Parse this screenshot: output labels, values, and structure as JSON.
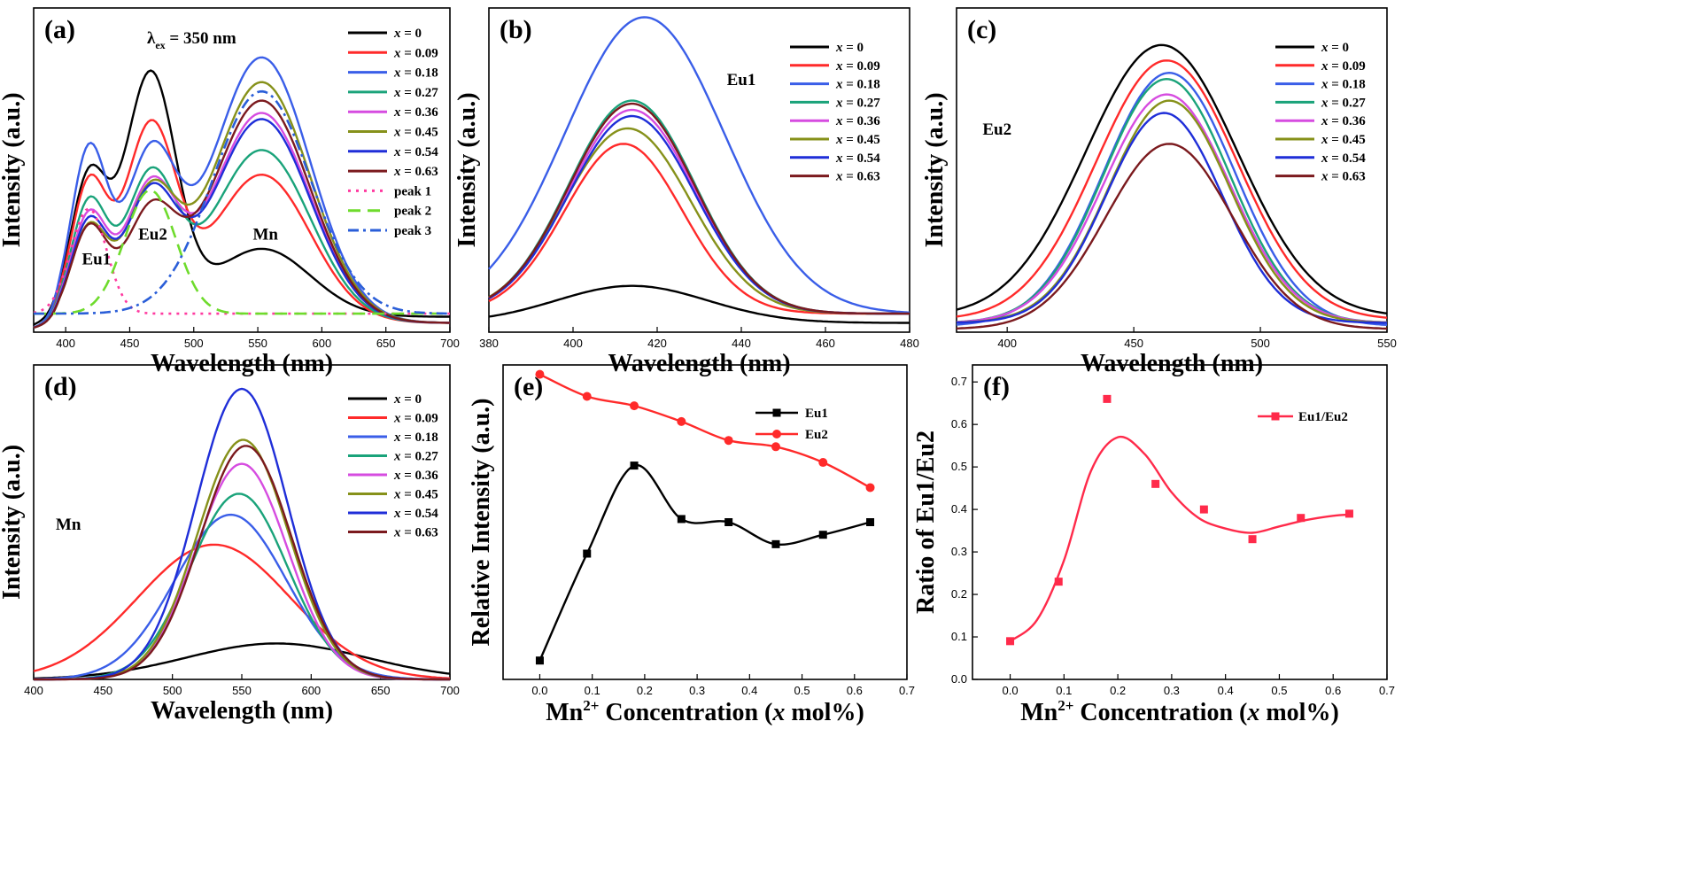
{
  "colors": {
    "x0": "#000000",
    "x009": "#ff2a2a",
    "x018": "#3a5ee8",
    "x027": "#1aa37a",
    "x036": "#d64ce0",
    "x045": "#86911a",
    "x054": "#1f2ed8",
    "x063": "#7b1a1e",
    "peak1": "#ff3aa0",
    "peak2": "#6edb2c",
    "peak3": "#2a5ed8",
    "eu1": "#000000",
    "eu2": "#ff2a2a",
    "ratio": "#ff2a4a"
  },
  "series_names": [
    "x = 0",
    "x = 0.09",
    "x = 0.18",
    "x = 0.27",
    "x = 0.36",
    "x = 0.45",
    "x = 0.54",
    "x = 0.63"
  ],
  "chart_data": [
    {
      "id": "a",
      "panel_label": "(a)",
      "type": "line",
      "xlabel": "Wavelength (nm)",
      "ylabel": "Intensity (a.u.)",
      "xlim": [
        375,
        700
      ],
      "ylim": [
        0,
        1.05
      ],
      "xticks": [
        400,
        450,
        500,
        550,
        600,
        650,
        700
      ],
      "excitation_symbol": "λ",
      "excitation_subscript": "ex",
      "excitation_text": "= 350 nm",
      "annotations": [
        {
          "text": "Eu1",
          "at": [
            424,
            0.22
          ]
        },
        {
          "text": "Eu2",
          "at": [
            468,
            0.3
          ]
        },
        {
          "text": "Mn",
          "at": [
            556,
            0.3
          ]
        }
      ],
      "components": {
        "series": [
          {
            "name": "x = 0",
            "eu1": 0.44,
            "eu2": 0.78,
            "mn": 0.22,
            "base": 0.05
          },
          {
            "name": "x = 0.09",
            "eu1": 0.44,
            "eu2": 0.62,
            "mn": 0.48,
            "base": 0.03
          },
          {
            "name": "x = 0.18",
            "eu1": 0.55,
            "eu2": 0.52,
            "mn": 0.86,
            "base": 0.03
          },
          {
            "name": "x = 0.27",
            "eu1": 0.38,
            "eu2": 0.46,
            "mn": 0.56,
            "base": 0.03
          },
          {
            "name": "x = 0.36",
            "eu1": 0.34,
            "eu2": 0.42,
            "mn": 0.68,
            "base": 0.03
          },
          {
            "name": "x = 0.45",
            "eu1": 0.3,
            "eu2": 0.4,
            "mn": 0.78,
            "base": 0.03
          },
          {
            "name": "x = 0.54",
            "eu1": 0.32,
            "eu2": 0.4,
            "mn": 0.66,
            "base": 0.03
          },
          {
            "name": "x = 0.63",
            "eu1": 0.3,
            "eu2": 0.34,
            "mn": 0.72,
            "base": 0.03
          }
        ],
        "peaks": [
          {
            "name": "peak 1",
            "center": 418,
            "sigma": 14,
            "amp": 0.34,
            "base": 0.06
          },
          {
            "name": "peak 2",
            "center": 466,
            "sigma": 20,
            "amp": 0.4,
            "base": 0.06
          },
          {
            "name": "peak 3",
            "center": 553,
            "sigma": 38,
            "amp": 0.72,
            "base": 0.06
          }
        ]
      }
    },
    {
      "id": "b",
      "panel_label": "(b)",
      "type": "line",
      "xlabel": "Wavelength (nm)",
      "ylabel": "Intensity (a.u.)",
      "xlim": [
        380,
        480
      ],
      "ylim": [
        0,
        1.05
      ],
      "xticks": [
        380,
        400,
        420,
        440,
        460,
        480
      ],
      "annotations": [
        {
          "text": "Eu1",
          "at": [
            440,
            0.8
          ]
        }
      ],
      "series": [
        {
          "name": "x = 0",
          "center": 414,
          "sigma": 18,
          "amp": 0.12,
          "base": 0.03
        },
        {
          "name": "x = 0.09",
          "center": 412,
          "sigma": 14,
          "amp": 0.55,
          "base": 0.06
        },
        {
          "name": "x = 0.18",
          "center": 417,
          "sigma": 19,
          "amp": 0.96,
          "base": 0.06
        },
        {
          "name": "x = 0.27",
          "center": 414,
          "sigma": 15,
          "amp": 0.69,
          "base": 0.06
        },
        {
          "name": "x = 0.36",
          "center": 414,
          "sigma": 15,
          "amp": 0.66,
          "base": 0.06
        },
        {
          "name": "x = 0.45",
          "center": 413,
          "sigma": 15,
          "amp": 0.6,
          "base": 0.06
        },
        {
          "name": "x = 0.54",
          "center": 414,
          "sigma": 15,
          "amp": 0.64,
          "base": 0.06
        },
        {
          "name": "x = 0.63",
          "center": 414,
          "sigma": 15,
          "amp": 0.68,
          "base": 0.06
        }
      ]
    },
    {
      "id": "c",
      "panel_label": "(c)",
      "type": "line",
      "xlabel": "Wavelength (nm)",
      "ylabel": "Intensity (a.u.)",
      "xlim": [
        380,
        550
      ],
      "ylim": [
        0,
        1.05
      ],
      "xticks": [
        400,
        450,
        500,
        550
      ],
      "annotations": [
        {
          "text": "Eu2",
          "at": [
            396,
            0.64
          ]
        }
      ],
      "series": [
        {
          "name": "x = 0",
          "center": 461,
          "sigma": 30,
          "amp": 0.88,
          "base": 0.05
        },
        {
          "name": "x = 0.09",
          "center": 463,
          "sigma": 28,
          "amp": 0.84,
          "base": 0.04
        },
        {
          "name": "x = 0.18",
          "center": 464,
          "sigma": 26,
          "amp": 0.82,
          "base": 0.02
        },
        {
          "name": "x = 0.27",
          "center": 463,
          "sigma": 25,
          "amp": 0.79,
          "base": 0.03
        },
        {
          "name": "x = 0.36",
          "center": 463,
          "sigma": 25,
          "amp": 0.74,
          "base": 0.03
        },
        {
          "name": "x = 0.45",
          "center": 464,
          "sigma": 24,
          "amp": 0.72,
          "base": 0.03
        },
        {
          "name": "x = 0.54",
          "center": 462,
          "sigma": 23,
          "amp": 0.68,
          "base": 0.03
        },
        {
          "name": "x = 0.63",
          "center": 464,
          "sigma": 25,
          "amp": 0.6,
          "base": 0.01
        }
      ]
    },
    {
      "id": "d",
      "panel_label": "(d)",
      "type": "line",
      "xlabel": "Wavelength (nm)",
      "ylabel": "Intensity (a.u.)",
      "xlim": [
        400,
        700
      ],
      "ylim": [
        0,
        1.05
      ],
      "xticks": [
        400,
        450,
        500,
        550,
        600,
        650,
        700
      ],
      "annotations": [
        {
          "text": "Mn",
          "at": [
            425,
            0.5
          ]
        }
      ],
      "series": [
        {
          "name": "x = 0",
          "center": 575,
          "sigma": 65,
          "amp": 0.12,
          "base": 0.0
        },
        {
          "name": "x = 0.09",
          "center": 530,
          "sigma": 55,
          "amp": 0.45,
          "base": 0.0
        },
        {
          "name": "x = 0.18",
          "center": 542,
          "sigma": 40,
          "amp": 0.55,
          "base": 0.0
        },
        {
          "name": "x = 0.27",
          "center": 548,
          "sigma": 35,
          "amp": 0.62,
          "base": 0.0
        },
        {
          "name": "x = 0.36",
          "center": 550,
          "sigma": 33,
          "amp": 0.72,
          "base": 0.0
        },
        {
          "name": "x = 0.45",
          "center": 551,
          "sigma": 33,
          "amp": 0.8,
          "base": 0.0
        },
        {
          "name": "x = 0.54",
          "center": 550,
          "sigma": 33,
          "amp": 0.97,
          "base": 0.0
        },
        {
          "name": "x = 0.63",
          "center": 553,
          "sigma": 33,
          "amp": 0.78,
          "base": 0.0
        }
      ]
    },
    {
      "id": "e",
      "panel_label": "(e)",
      "type": "line",
      "xlabel_parts": [
        "Mn",
        "2+",
        " Concentration (",
        "x",
        " mol%)"
      ],
      "ylabel": "Relative Intensity (a.u.)",
      "xlim": [
        -0.07,
        0.7
      ],
      "ylim": [
        0,
        1
      ],
      "xticks": [
        0.0,
        0.1,
        0.2,
        0.3,
        0.4,
        0.5,
        0.6,
        0.7
      ],
      "xtick_labels": [
        "0.0",
        "0.1",
        "0.2",
        "0.3",
        "0.4",
        "0.5",
        "0.6",
        "0.7"
      ],
      "x": [
        0.0,
        0.09,
        0.18,
        0.27,
        0.36,
        0.45,
        0.54,
        0.63
      ],
      "series": [
        {
          "name": "Eu1",
          "values": [
            0.06,
            0.4,
            0.68,
            0.51,
            0.5,
            0.43,
            0.46,
            0.5
          ],
          "marker": "square"
        },
        {
          "name": "Eu2",
          "values": [
            0.97,
            0.9,
            0.87,
            0.82,
            0.76,
            0.74,
            0.69,
            0.61
          ],
          "marker": "circle"
        }
      ]
    },
    {
      "id": "f",
      "panel_label": "(f)",
      "type": "scatter",
      "xlabel_parts": [
        "Mn",
        "2+",
        " Concentration (",
        "x",
        " mol%)"
      ],
      "ylabel": "Ratio of Eu1/Eu2",
      "xlim": [
        -0.07,
        0.7
      ],
      "ylim": [
        0.0,
        0.74
      ],
      "xticks": [
        0.0,
        0.1,
        0.2,
        0.3,
        0.4,
        0.5,
        0.6,
        0.7
      ],
      "xtick_labels": [
        "0.0",
        "0.1",
        "0.2",
        "0.3",
        "0.4",
        "0.5",
        "0.6",
        "0.7"
      ],
      "yticks": [
        0.0,
        0.1,
        0.2,
        0.3,
        0.4,
        0.5,
        0.6,
        0.7
      ],
      "ytick_labels": [
        "0.0",
        "0.1",
        "0.2",
        "0.3",
        "0.4",
        "0.5",
        "0.6",
        "0.7"
      ],
      "x": [
        0.0,
        0.09,
        0.18,
        0.27,
        0.36,
        0.45,
        0.54,
        0.63
      ],
      "series": [
        {
          "name": "Eu1/Eu2",
          "values": [
            0.09,
            0.23,
            0.66,
            0.46,
            0.4,
            0.33,
            0.38,
            0.39
          ],
          "marker": "square"
        }
      ],
      "fit_curve": {
        "x": [
          0.0,
          0.05,
          0.1,
          0.15,
          0.2,
          0.25,
          0.3,
          0.35,
          0.4,
          0.45,
          0.5,
          0.55,
          0.6,
          0.63
        ],
        "y": [
          0.09,
          0.14,
          0.28,
          0.49,
          0.57,
          0.53,
          0.44,
          0.38,
          0.355,
          0.345,
          0.36,
          0.375,
          0.385,
          0.388
        ]
      }
    }
  ]
}
